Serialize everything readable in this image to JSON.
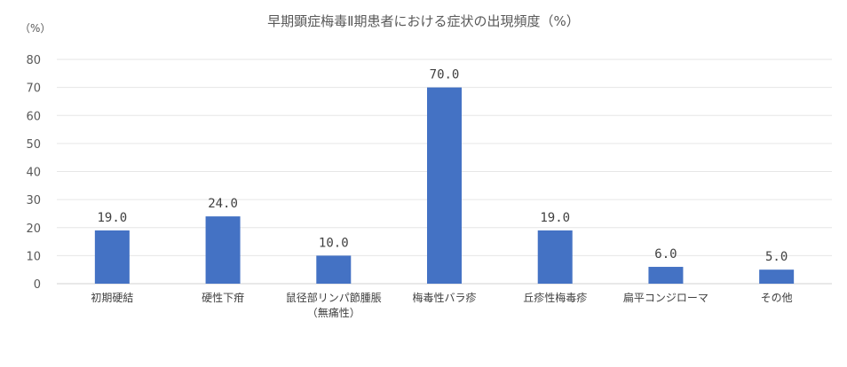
{
  "chart_data": {
    "type": "bar",
    "title": "早期顕症梅毒Ⅱ期患者における症状の出現頻度（%）",
    "unit_label": "（%）",
    "xlabel": "",
    "ylabel": "",
    "ylim": [
      0,
      80
    ],
    "yticks": [
      "0",
      "10",
      "20",
      "30",
      "40",
      "50",
      "60",
      "70",
      "80"
    ],
    "grid": true,
    "legend": "none",
    "bar_color": "#4472c4",
    "categories": [
      [
        "初期硬結"
      ],
      [
        "硬性下疳"
      ],
      [
        "鼠径部リンパ節腫脹",
        "（無痛性）"
      ],
      [
        "梅毒性バラ疹"
      ],
      [
        "丘疹性梅毒疹"
      ],
      [
        "扁平コンジローマ"
      ],
      [
        "その他"
      ]
    ],
    "values": [
      19.0,
      24.0,
      10.0,
      70.0,
      19.0,
      6.0,
      5.0
    ],
    "value_labels": [
      "19.0",
      "24.0",
      "10.0",
      "70.0",
      "19.0",
      "6.0",
      "5.0"
    ]
  }
}
